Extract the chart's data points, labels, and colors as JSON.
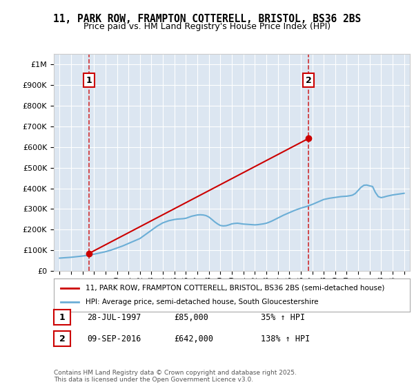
{
  "title_line1": "11, PARK ROW, FRAMPTON COTTERELL, BRISTOL, BS36 2BS",
  "title_line2": "Price paid vs. HM Land Registry's House Price Index (HPI)",
  "background_color": "#dce6f1",
  "plot_bg_color": "#dce6f1",
  "fig_bg_color": "#ffffff",
  "hpi_color": "#6baed6",
  "price_color": "#cc0000",
  "annotation1_date": 1997.57,
  "annotation1_value": 85000,
  "annotation2_date": 2016.69,
  "annotation2_value": 642000,
  "annotation1_label": "1",
  "annotation2_label": "2",
  "legend_line1": "11, PARK ROW, FRAMPTON COTTERELL, BRISTOL, BS36 2BS (semi-detached house)",
  "legend_line2": "HPI: Average price, semi-detached house, South Gloucestershire",
  "table_row1": [
    "1",
    "28-JUL-1997",
    "£85,000",
    "35% ↑ HPI"
  ],
  "table_row2": [
    "2",
    "09-SEP-2016",
    "£642,000",
    "138% ↑ HPI"
  ],
  "footnote": "Contains HM Land Registry data © Crown copyright and database right 2025.\nThis data is licensed under the Open Government Licence v3.0.",
  "ylim_min": 0,
  "ylim_max": 1050000,
  "xlim_min": 1994.5,
  "xlim_max": 2025.5,
  "hpi_years": [
    1995,
    1995.25,
    1995.5,
    1995.75,
    1996,
    1996.25,
    1996.5,
    1996.75,
    1997,
    1997.25,
    1997.5,
    1997.75,
    1998,
    1998.25,
    1998.5,
    1998.75,
    1999,
    1999.25,
    1999.5,
    1999.75,
    2000,
    2000.25,
    2000.5,
    2000.75,
    2001,
    2001.25,
    2001.5,
    2001.75,
    2002,
    2002.25,
    2002.5,
    2002.75,
    2003,
    2003.25,
    2003.5,
    2003.75,
    2004,
    2004.25,
    2004.5,
    2004.75,
    2005,
    2005.25,
    2005.5,
    2005.75,
    2006,
    2006.25,
    2006.5,
    2006.75,
    2007,
    2007.25,
    2007.5,
    2007.75,
    2008,
    2008.25,
    2008.5,
    2008.75,
    2009,
    2009.25,
    2009.5,
    2009.75,
    2010,
    2010.25,
    2010.5,
    2010.75,
    2011,
    2011.25,
    2011.5,
    2011.75,
    2012,
    2012.25,
    2012.5,
    2012.75,
    2013,
    2013.25,
    2013.5,
    2013.75,
    2014,
    2014.25,
    2014.5,
    2014.75,
    2015,
    2015.25,
    2015.5,
    2015.75,
    2016,
    2016.25,
    2016.5,
    2016.75,
    2017,
    2017.25,
    2017.5,
    2017.75,
    2018,
    2018.25,
    2018.5,
    2018.75,
    2019,
    2019.25,
    2019.5,
    2019.75,
    2020,
    2020.25,
    2020.5,
    2020.75,
    2021,
    2021.25,
    2021.5,
    2021.75,
    2022,
    2022.25,
    2022.5,
    2022.75,
    2023,
    2023.25,
    2023.5,
    2023.75,
    2024,
    2024.25,
    2024.5,
    2024.75,
    2025
  ],
  "hpi_values": [
    62000,
    63000,
    64000,
    65000,
    66000,
    67500,
    69000,
    70500,
    72000,
    74000,
    76000,
    78500,
    81000,
    84000,
    87000,
    90000,
    93000,
    97000,
    101000,
    106000,
    111000,
    116000,
    121000,
    127000,
    133000,
    139000,
    145000,
    151000,
    157000,
    167000,
    177000,
    187000,
    197000,
    207000,
    217000,
    225000,
    233000,
    238000,
    243000,
    246000,
    249000,
    251000,
    252000,
    253000,
    255000,
    260000,
    265000,
    268000,
    271000,
    272000,
    271000,
    268000,
    261000,
    250000,
    238000,
    228000,
    220000,
    218000,
    219000,
    223000,
    228000,
    230000,
    231000,
    229000,
    227000,
    226000,
    225000,
    224000,
    223000,
    224000,
    226000,
    228000,
    231000,
    236000,
    242000,
    249000,
    256000,
    263000,
    270000,
    276000,
    282000,
    288000,
    294000,
    299000,
    304000,
    308000,
    312000,
    317000,
    322000,
    328000,
    334000,
    340000,
    346000,
    349000,
    352000,
    354000,
    356000,
    358000,
    360000,
    361000,
    362000,
    364000,
    367000,
    375000,
    390000,
    405000,
    415000,
    416000,
    412000,
    409000,
    380000,
    360000,
    355000,
    358000,
    362000,
    365000,
    368000,
    370000,
    372000,
    374000,
    376000
  ],
  "price_years": [
    1997.57,
    2016.69
  ],
  "price_values": [
    85000,
    642000
  ]
}
